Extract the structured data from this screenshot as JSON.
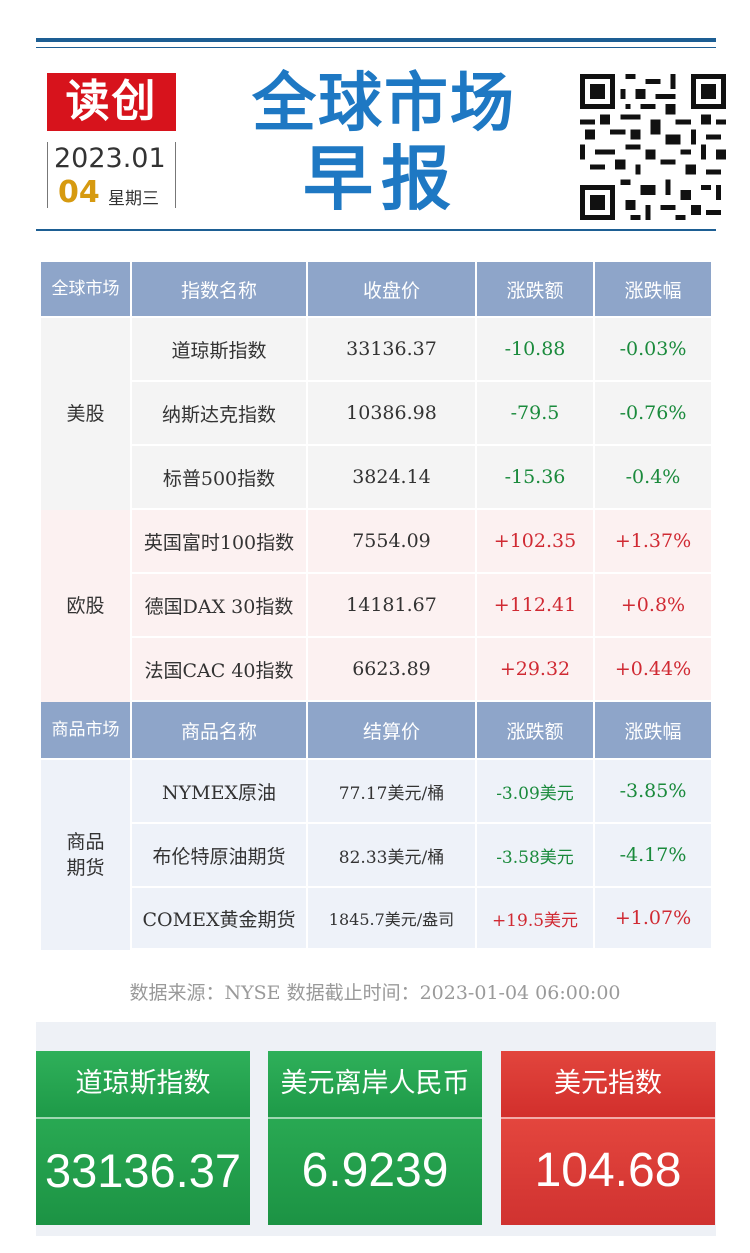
{
  "header": {
    "logo_text": "读创",
    "date_year_month": "2023.01",
    "date_day": "04",
    "weekday": "星期三",
    "title_line1": "全球市场",
    "title_line2": "早报"
  },
  "stock_table": {
    "headers": [
      "全球市场",
      "指数名称",
      "收盘价",
      "涨跌额",
      "涨跌幅"
    ],
    "groups": [
      {
        "market": "美股",
        "rows": [
          {
            "name": "道琼斯指数",
            "close": "33136.37",
            "change": "-10.88",
            "pct": "-0.03%"
          },
          {
            "name": "纳斯达克指数",
            "close": "10386.98",
            "change": "-79.5",
            "pct": "-0.76%"
          },
          {
            "name": "标普500指数",
            "close": "3824.14",
            "change": "-15.36",
            "pct": "-0.4%"
          }
        ]
      },
      {
        "market": "欧股",
        "rows": [
          {
            "name": "英国富时100指数",
            "close": "7554.09",
            "change": "+102.35",
            "pct": "+1.37%"
          },
          {
            "name": "德国DAX 30指数",
            "close": "14181.67",
            "change": "+112.41",
            "pct": "+0.8%"
          },
          {
            "name": "法国CAC 40指数",
            "close": "6623.89",
            "change": "+29.32",
            "pct": "+0.44%"
          }
        ]
      }
    ]
  },
  "commodity_table": {
    "headers": [
      "商品市场",
      "商品名称",
      "结算价",
      "涨跌额",
      "涨跌幅"
    ],
    "group": "商品期货",
    "rows": [
      {
        "name": "NYMEX原油",
        "price": "77.17美元/桶",
        "change": "-3.09美元",
        "pct": "-3.85%"
      },
      {
        "name": "布伦特原油期货",
        "price": "82.33美元/桶",
        "change": "-3.58美元",
        "pct": "-4.17%"
      },
      {
        "name": "COMEX黄金期货",
        "price": "1845.7美元/盎司",
        "change": "+19.5美元",
        "pct": "+1.07%"
      }
    ]
  },
  "source_note": "数据来源：NYSE 数据截止时间：2023-01-04 06:00:00",
  "cards": [
    {
      "label": "道琼斯指数",
      "value": "33136.37"
    },
    {
      "label": "美元离岸人民币",
      "value": "6.9239"
    },
    {
      "label": "美元指数",
      "value": "104.68"
    }
  ],
  "colors": {
    "title_blue": "#1e78c3",
    "rule_blue": "#1d5e93",
    "logo_red": "#d7131c",
    "header_cell": "#8ea5c9",
    "down_green": "#1a8a3c",
    "up_red": "#d02a33",
    "card_green": "#22a04c",
    "card_red": "#d93a35"
  }
}
